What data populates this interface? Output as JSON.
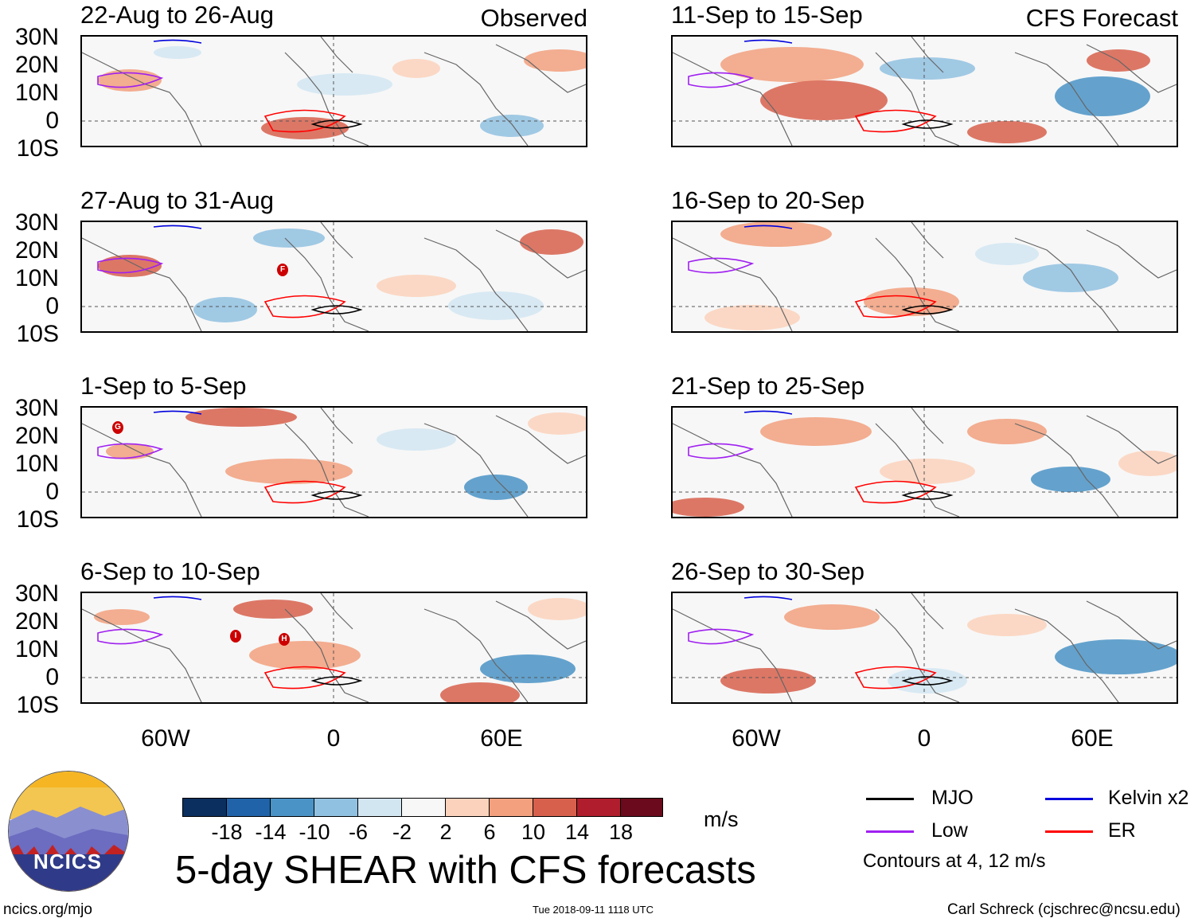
{
  "headers": {
    "left": "Observed",
    "right": "CFS Forecast"
  },
  "panels": [
    {
      "title": "22-Aug to 26-Aug"
    },
    {
      "title": "27-Aug to 31-Aug"
    },
    {
      "title": "1-Sep to 5-Sep"
    },
    {
      "title": "6-Sep to 10-Sep"
    },
    {
      "title": "11-Sep to 15-Sep"
    },
    {
      "title": "16-Sep to 20-Sep"
    },
    {
      "title": "21-Sep to 25-Sep"
    },
    {
      "title": "26-Sep to 30-Sep"
    }
  ],
  "storm_markers": [
    {
      "panel": 1,
      "label": "F"
    },
    {
      "panel": 2,
      "label": "G"
    },
    {
      "panel": 3,
      "label": "I"
    },
    {
      "panel": 3,
      "label": "H"
    }
  ],
  "lat_labels": [
    "30N",
    "20N",
    "10N",
    "0",
    "10S"
  ],
  "lon_labels": [
    "60W",
    "0",
    "60E"
  ],
  "colorbar": {
    "unit": "m/s",
    "ticks": [
      "-18",
      "-14",
      "-10",
      "-6",
      "-2",
      "2",
      "6",
      "10",
      "14",
      "18"
    ],
    "colors": [
      "#0b2f5e",
      "#2163a8",
      "#4a93c6",
      "#91c1e0",
      "#d2e6f2",
      "#f7f7f7",
      "#fbd2bc",
      "#f2a07e",
      "#d7604c",
      "#b01d2c",
      "#6a0a1c"
    ]
  },
  "legend": {
    "items": [
      {
        "label": "MJO",
        "color": "#000000"
      },
      {
        "label": "Kelvin x2",
        "color": "#0000dd"
      },
      {
        "label": "Low",
        "color": "#a020f0"
      },
      {
        "label": "ER",
        "color": "#ff0000"
      }
    ],
    "note": "Contours at 4, 12 m/s"
  },
  "main_title": "5-day SHEAR with CFS forecasts",
  "logo": {
    "text": "NCICS"
  },
  "footer": {
    "left": "ncics.org/mjo",
    "center": "Tue 2018-09-11 1118 UTC",
    "right": "Carl Schreck (cjschrec@ncsu.edu)"
  }
}
